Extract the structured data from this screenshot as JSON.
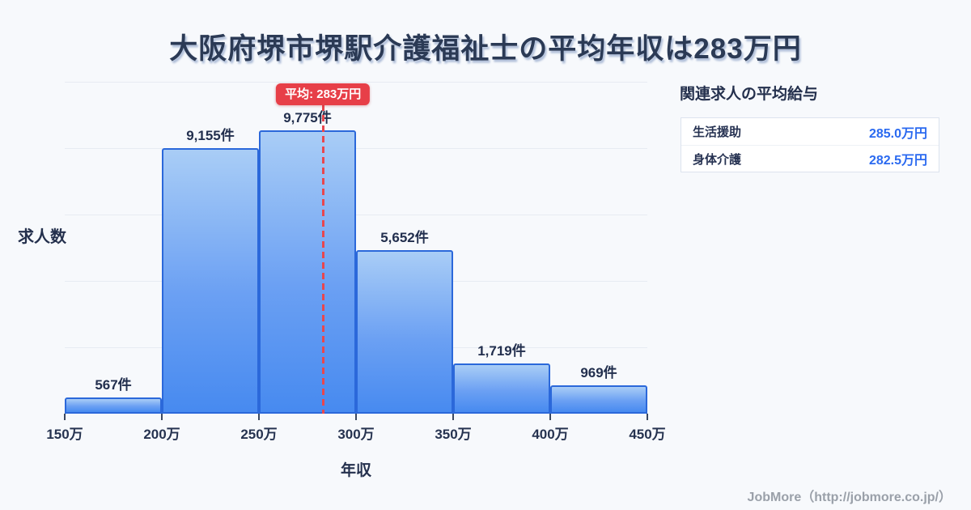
{
  "title": "大阪府堺市堺駅介護福祉士の平均年収は283万円",
  "chart_data": {
    "type": "bar",
    "title": "大阪府堺市堺駅介護福祉士の平均年収は283万円",
    "xlabel": "年収",
    "ylabel": "求人数",
    "categories": [
      "150万-200万",
      "200万-250万",
      "250万-300万",
      "300万-350万",
      "350万-400万",
      "400万-450万"
    ],
    "values": [
      567,
      9155,
      9775,
      5652,
      1719,
      969
    ],
    "bar_labels": [
      "567件",
      "9,155件",
      "9,775件",
      "5,652件",
      "1,719件",
      "969件"
    ],
    "x_ticks": [
      "150万",
      "200万",
      "250万",
      "300万",
      "350万",
      "400万",
      "450万"
    ],
    "x_range_man": [
      150,
      450
    ],
    "ylim": [
      0,
      11451
    ],
    "grid": true,
    "legend": false,
    "average_line": {
      "value": 283,
      "label": "平均: 283万円"
    }
  },
  "side_panel": {
    "heading": "関連求人の平均給与",
    "rows": [
      {
        "label": "生活援助",
        "value": "285.0万円"
      },
      {
        "label": "身体介護",
        "value": "282.5万円"
      }
    ]
  },
  "footer": {
    "credit": "JobMore（http://jobmore.co.jp/）"
  },
  "colors": {
    "background": "#f7f9fc",
    "title_text": "#2b3a55",
    "bar_fill_top": "#a9cdf6",
    "bar_fill_bottom": "#478af0",
    "bar_border": "#2b68da",
    "average_red": "#e73f48",
    "value_blue": "#2b6af0",
    "gridline": "#e7ebf2",
    "footer_gray": "#9aa0a9"
  }
}
